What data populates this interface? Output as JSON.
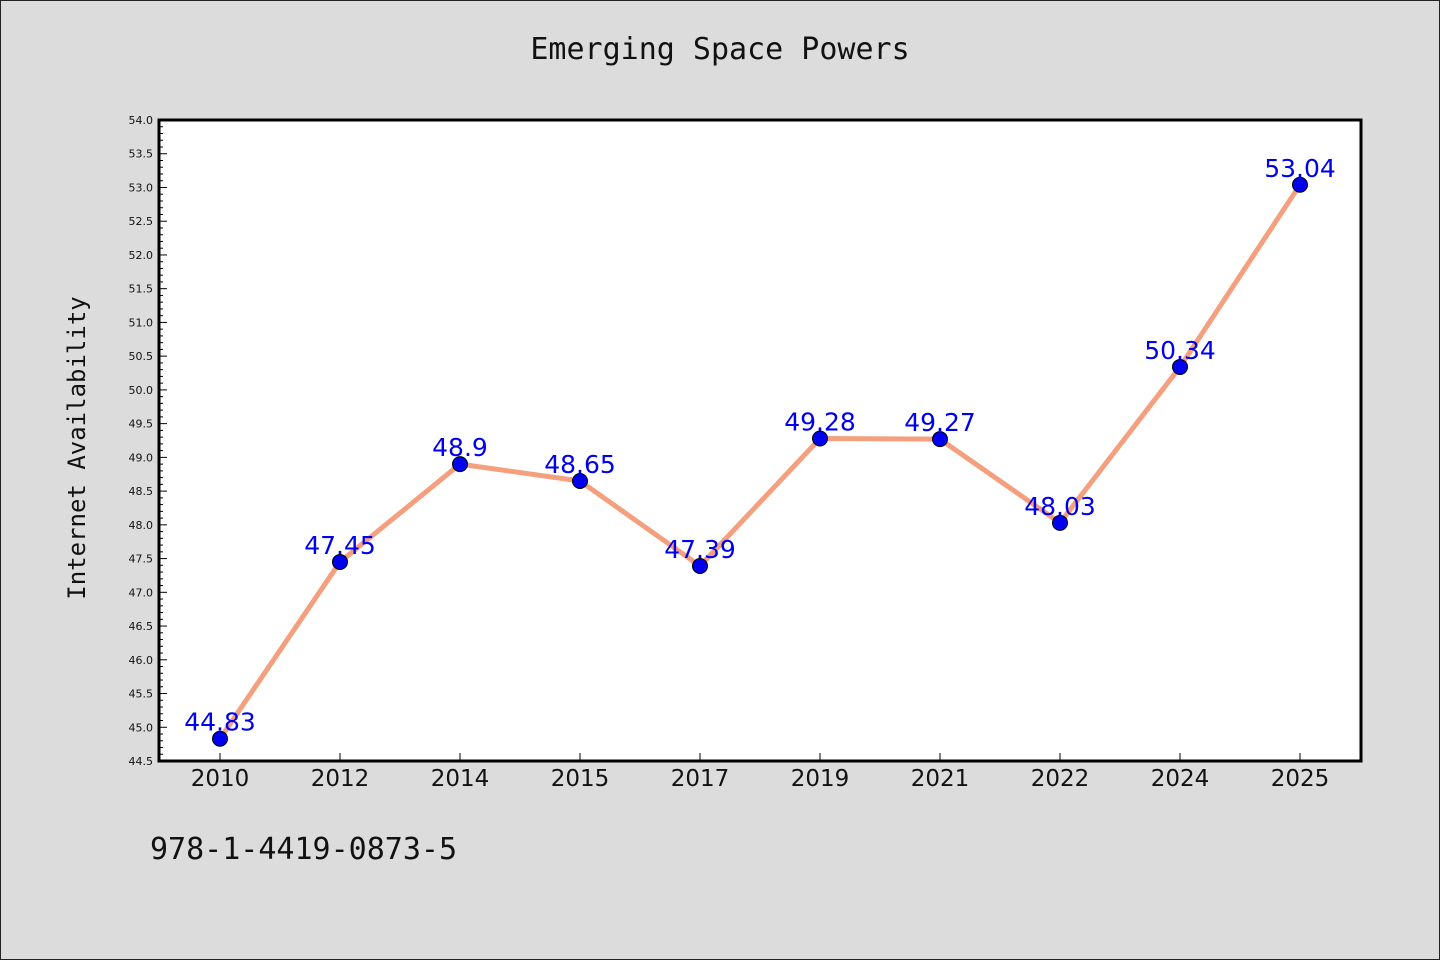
{
  "chart_data": {
    "type": "line",
    "title": "Emerging Space Powers",
    "xlabel": "",
    "ylabel": "Internet Availability",
    "categories": [
      "2010",
      "2012",
      "2014",
      "2015",
      "2017",
      "2019",
      "2021",
      "2022",
      "2024",
      "2025"
    ],
    "series": [
      {
        "values": [
          44.83,
          47.45,
          48.9,
          48.65,
          47.39,
          49.28,
          49.27,
          48.03,
          50.34,
          53.04
        ],
        "labels": [
          "44.83",
          "47.45",
          "48.9",
          "48.65",
          "47.39",
          "49.28",
          "49.27",
          "48.03",
          "50.34",
          "53.04"
        ]
      }
    ],
    "ylim": [
      44.5,
      54.0
    ],
    "yticks": [
      "44.5",
      "45.0",
      "45.5",
      "46.0",
      "46.5",
      "47.0",
      "47.5",
      "48.0",
      "48.5",
      "49.0",
      "49.5",
      "50.0",
      "50.5",
      "51.0",
      "51.5",
      "52.0",
      "52.5",
      "53.0",
      "53.5",
      "54.0"
    ],
    "grid": false,
    "legend": "none",
    "line_color": "#f4a07e",
    "marker_color": "#0000ee",
    "label_color": "#0000ee"
  },
  "footer": {
    "isbn": "978-1-4419-0873-5"
  }
}
